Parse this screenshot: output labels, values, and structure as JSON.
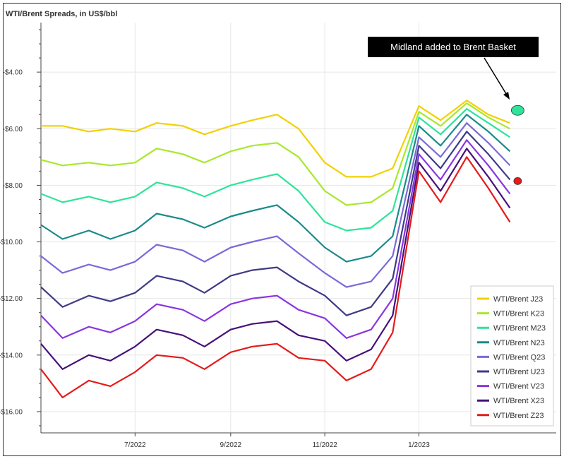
{
  "chart_data": {
    "type": "line",
    "title": "WTI/Brent Spreads, in US$/bbl",
    "xlabel": "",
    "ylabel": "",
    "ylim": [
      -16.75,
      -2.25
    ],
    "xlim": [
      "2022-05-01",
      "2023-03-31"
    ],
    "grid": true,
    "legend_position": "bottom-right",
    "y_ticks": [
      {
        "value": -4,
        "label": "-$4.00"
      },
      {
        "value": -6,
        "label": "-$6.00"
      },
      {
        "value": -8,
        "label": "-$8.00"
      },
      {
        "value": -10,
        "label": "-$10.00"
      },
      {
        "value": -12,
        "label": "-$12.00"
      },
      {
        "value": -14,
        "label": "-$14.00"
      },
      {
        "value": -16,
        "label": "-$16.00"
      }
    ],
    "x_ticks": [
      {
        "date": "2022-07-01",
        "label": "7/2022"
      },
      {
        "date": "2022-09-01",
        "label": "9/2022"
      },
      {
        "date": "2022-11-01",
        "label": "11/2022"
      },
      {
        "date": "2023-01-01",
        "label": "1/2023"
      }
    ],
    "x": [
      "2022-05-01",
      "2022-05-15",
      "2022-06-01",
      "2022-06-15",
      "2022-07-01",
      "2022-07-15",
      "2022-08-01",
      "2022-08-15",
      "2022-09-01",
      "2022-09-15",
      "2022-10-01",
      "2022-10-15",
      "2022-11-01",
      "2022-11-15",
      "2022-12-01",
      "2022-12-15",
      "2023-01-01",
      "2023-01-15",
      "2023-02-01",
      "2023-02-15",
      "2023-03-01"
    ],
    "series": [
      {
        "name": "WTI/Brent J23",
        "color": "#f2d100",
        "values": [
          -5.9,
          -5.9,
          -6.1,
          -6.0,
          -6.1,
          -5.8,
          -5.9,
          -6.2,
          -5.9,
          -5.7,
          -5.5,
          -6.0,
          -7.2,
          -7.7,
          -7.7,
          -7.4,
          -5.2,
          -5.7,
          -5.0,
          -5.5,
          -5.8
        ]
      },
      {
        "name": "WTI/Brent K23",
        "color": "#a8e82e",
        "values": [
          -7.1,
          -7.3,
          -7.2,
          -7.3,
          -7.2,
          -6.7,
          -6.9,
          -7.2,
          -6.8,
          -6.6,
          -6.5,
          -7.0,
          -8.2,
          -8.7,
          -8.6,
          -8.1,
          -5.4,
          -5.9,
          -5.1,
          -5.6,
          -6.0
        ]
      },
      {
        "name": "WTI/Brent M23",
        "color": "#2fe39a",
        "values": [
          -8.3,
          -8.6,
          -8.4,
          -8.6,
          -8.4,
          -7.9,
          -8.1,
          -8.4,
          -8.0,
          -7.8,
          -7.6,
          -8.2,
          -9.3,
          -9.6,
          -9.5,
          -8.9,
          -5.6,
          -6.2,
          -5.3,
          -5.8,
          -6.3
        ]
      },
      {
        "name": "WTI/Brent N23",
        "color": "#1a8a8a",
        "values": [
          -9.4,
          -9.9,
          -9.6,
          -9.9,
          -9.6,
          -9.0,
          -9.2,
          -9.5,
          -9.1,
          -8.9,
          -8.7,
          -9.3,
          -10.2,
          -10.7,
          -10.5,
          -9.8,
          -5.9,
          -6.6,
          -5.5,
          -6.1,
          -6.8
        ]
      },
      {
        "name": "WTI/Brent Q23",
        "color": "#7a6ad8",
        "values": [
          -10.5,
          -11.1,
          -10.8,
          -11.0,
          -10.7,
          -10.1,
          -10.3,
          -10.7,
          -10.2,
          -10.0,
          -9.8,
          -10.4,
          -11.1,
          -11.6,
          -11.4,
          -10.5,
          -6.3,
          -7.0,
          -5.8,
          -6.5,
          -7.3
        ]
      },
      {
        "name": "WTI/Brent U23",
        "color": "#3f3a88",
        "values": [
          -11.6,
          -12.3,
          -11.9,
          -12.1,
          -11.8,
          -11.2,
          -11.4,
          -11.8,
          -11.2,
          -11.0,
          -10.9,
          -11.4,
          -11.9,
          -12.6,
          -12.3,
          -11.3,
          -6.6,
          -7.4,
          -6.1,
          -6.9,
          -7.8
        ]
      },
      {
        "name": "WTI/Brent V23",
        "color": "#8a35e0",
        "values": [
          -12.6,
          -13.4,
          -13.0,
          -13.2,
          -12.8,
          -12.2,
          -12.4,
          -12.8,
          -12.2,
          -12.0,
          -11.9,
          -12.4,
          -12.7,
          -13.4,
          -13.1,
          -12.0,
          -6.9,
          -7.8,
          -6.4,
          -7.3,
          -8.3
        ]
      },
      {
        "name": "WTI/Brent X23",
        "color": "#46107a",
        "values": [
          -13.6,
          -14.5,
          -14.0,
          -14.2,
          -13.7,
          -13.1,
          -13.3,
          -13.7,
          -13.1,
          -12.9,
          -12.8,
          -13.3,
          -13.5,
          -14.2,
          -13.8,
          -12.6,
          -7.2,
          -8.2,
          -6.7,
          -7.7,
          -8.8
        ]
      },
      {
        "name": "WTI/Brent Z23",
        "color": "#e51b1b",
        "values": [
          -14.5,
          -15.5,
          -14.9,
          -15.1,
          -14.6,
          -14.0,
          -14.1,
          -14.5,
          -13.9,
          -13.7,
          -13.6,
          -14.1,
          -14.2,
          -14.9,
          -14.5,
          -13.2,
          -7.5,
          -8.6,
          -7.0,
          -8.1,
          -9.3
        ]
      }
    ],
    "annotation": {
      "text": "Midland added to Brent Basket"
    },
    "markers": [
      {
        "name": "M23 marker",
        "date": "2023-03-06",
        "value": -5.35,
        "color": "#2fe39a"
      },
      {
        "name": "Z23 marker",
        "date": "2023-03-06",
        "value": -7.85,
        "color": "#e51b1b"
      }
    ]
  }
}
